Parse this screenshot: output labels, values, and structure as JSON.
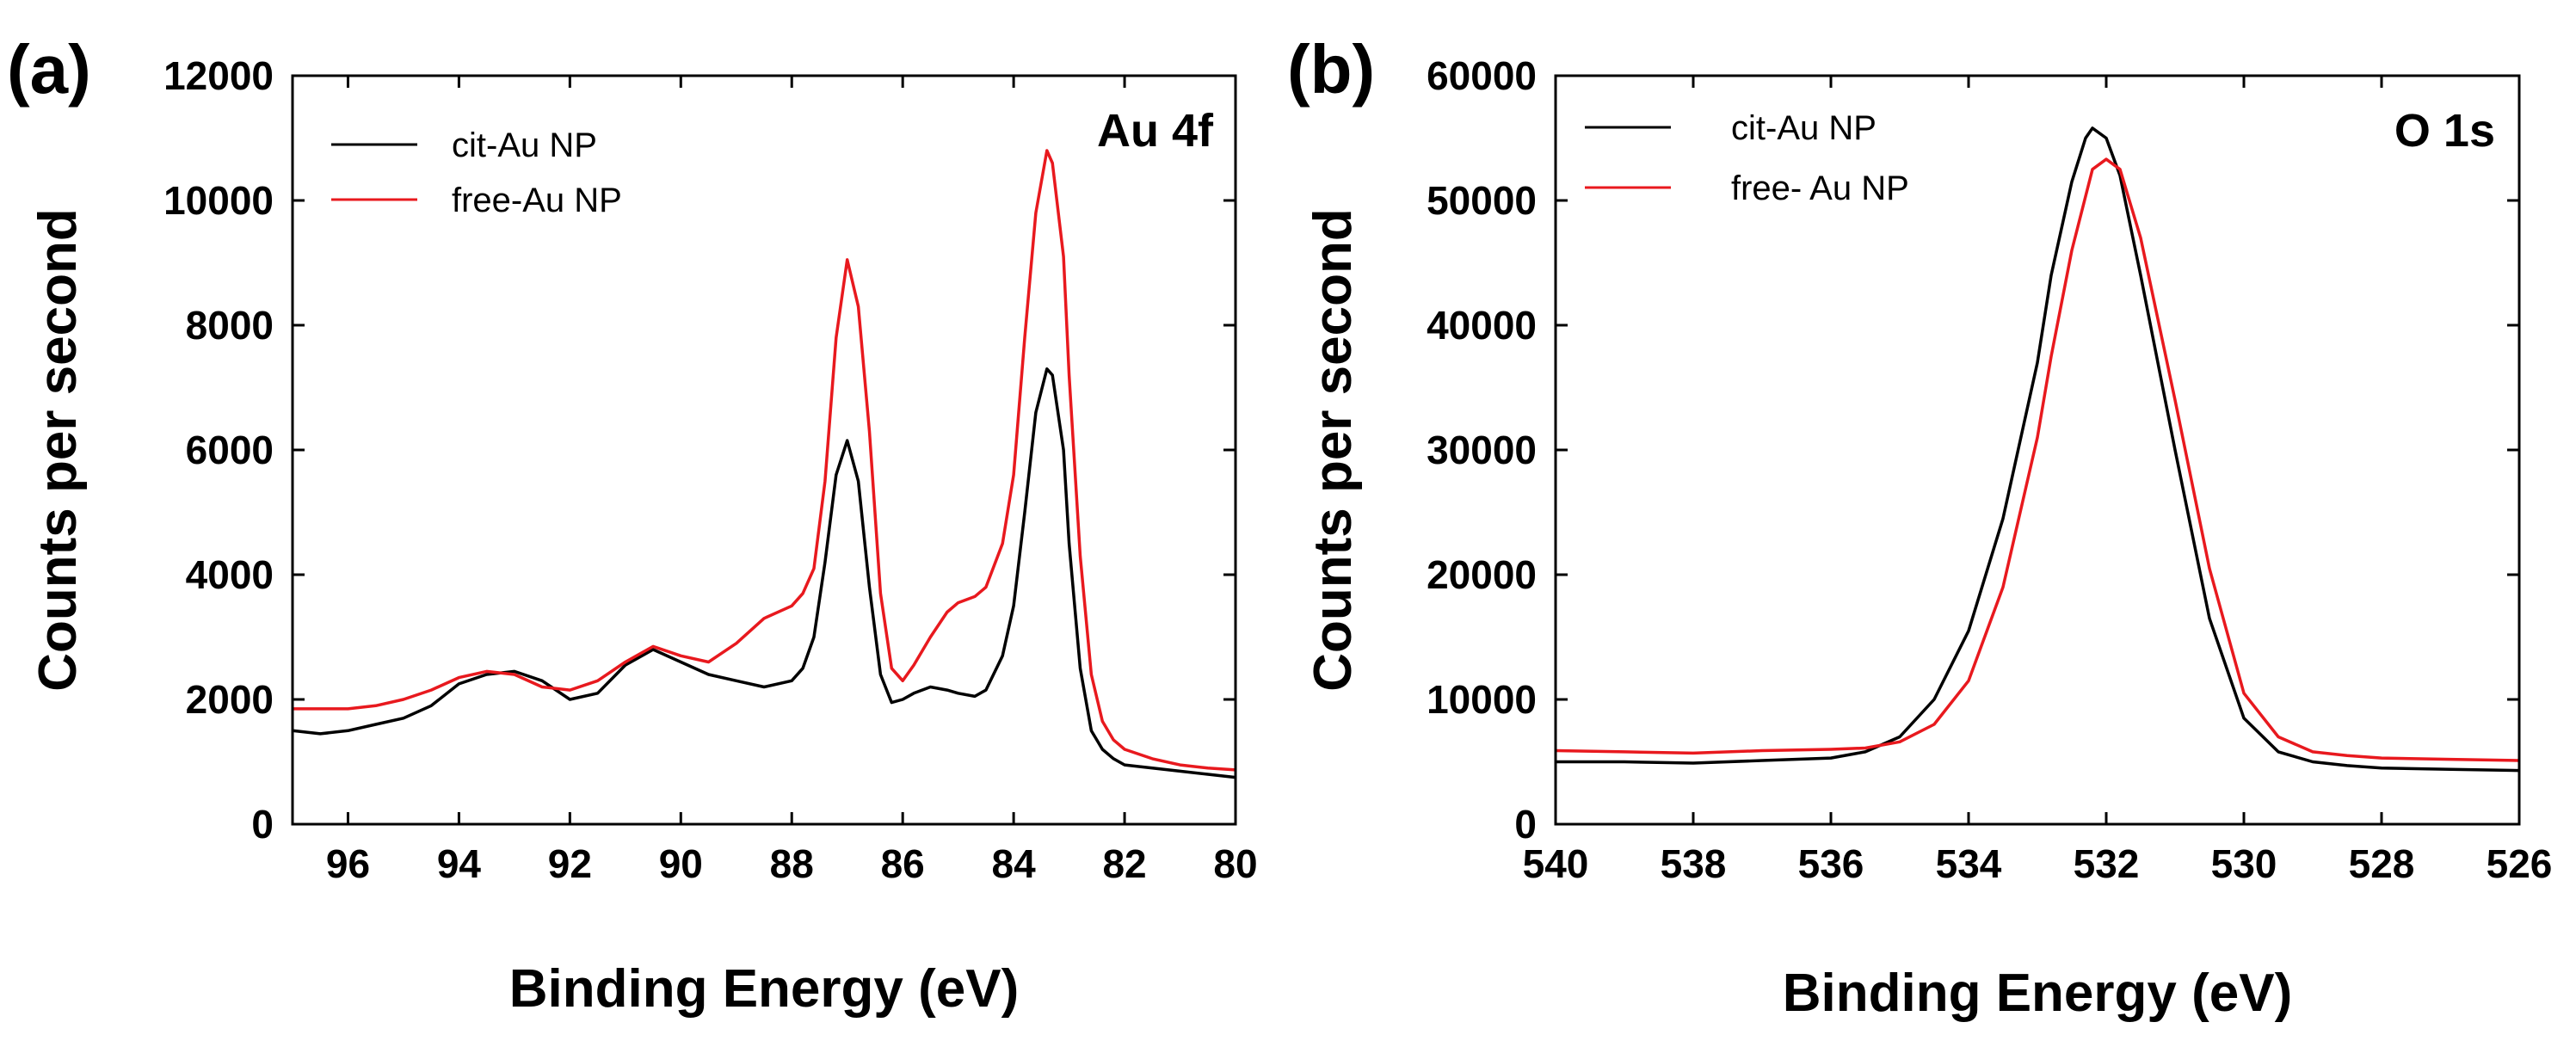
{
  "chart_data": [
    {
      "panel_label": "(a)",
      "type": "line",
      "title": "",
      "annotation": "Au 4f",
      "xlabel": "Binding Energy (eV)",
      "ylabel": "Counts per second",
      "xlim": [
        97,
        80
      ],
      "ylim": [
        0,
        12000
      ],
      "xticks": [
        96,
        94,
        92,
        90,
        88,
        86,
        84,
        82,
        80
      ],
      "yticks": [
        0,
        2000,
        4000,
        6000,
        8000,
        10000,
        12000
      ],
      "legend_position": "top-left",
      "series": [
        {
          "name": "cit-Au NP",
          "color": "#000000",
          "x": [
            97,
            96.5,
            96,
            95.5,
            95,
            94.5,
            94,
            93.5,
            93,
            92.5,
            92,
            91.5,
            91,
            90.5,
            90,
            89.5,
            89,
            88.5,
            88,
            87.8,
            87.6,
            87.4,
            87.2,
            87,
            86.8,
            86.6,
            86.4,
            86.2,
            86,
            85.8,
            85.5,
            85.2,
            85,
            84.7,
            84.5,
            84.2,
            84,
            83.8,
            83.6,
            83.4,
            83.3,
            83.1,
            83,
            82.8,
            82.6,
            82.4,
            82.2,
            82,
            81.5,
            81,
            80.5,
            80
          ],
          "values": [
            1500,
            1450,
            1500,
            1600,
            1700,
            1900,
            2250,
            2400,
            2450,
            2300,
            2000,
            2100,
            2550,
            2800,
            2600,
            2400,
            2300,
            2200,
            2300,
            2500,
            3000,
            4200,
            5600,
            6150,
            5500,
            3800,
            2400,
            1950,
            2000,
            2100,
            2200,
            2150,
            2100,
            2050,
            2150,
            2700,
            3500,
            5000,
            6600,
            7300,
            7200,
            6000,
            4500,
            2500,
            1500,
            1200,
            1050,
            950,
            900,
            850,
            800,
            750
          ]
        },
        {
          "name": "free-Au NP",
          "color": "#e8191e",
          "x": [
            97,
            96.5,
            96,
            95.5,
            95,
            94.5,
            94,
            93.5,
            93,
            92.5,
            92,
            91.5,
            91,
            90.5,
            90,
            89.5,
            89,
            88.5,
            88,
            87.8,
            87.6,
            87.4,
            87.2,
            87,
            86.8,
            86.6,
            86.4,
            86.2,
            86,
            85.8,
            85.5,
            85.2,
            85,
            84.7,
            84.5,
            84.2,
            84,
            83.8,
            83.6,
            83.4,
            83.3,
            83.1,
            83,
            82.8,
            82.6,
            82.4,
            82.2,
            82,
            81.5,
            81,
            80.5,
            80
          ],
          "values": [
            1850,
            1850,
            1850,
            1900,
            2000,
            2150,
            2350,
            2450,
            2400,
            2200,
            2150,
            2300,
            2600,
            2850,
            2700,
            2600,
            2900,
            3300,
            3500,
            3700,
            4100,
            5500,
            7800,
            9050,
            8300,
            6300,
            3700,
            2500,
            2300,
            2550,
            3000,
            3400,
            3550,
            3650,
            3800,
            4500,
            5600,
            7800,
            9800,
            10800,
            10600,
            9100,
            7200,
            4300,
            2400,
            1650,
            1350,
            1200,
            1050,
            950,
            900,
            870
          ]
        }
      ]
    },
    {
      "panel_label": "(b)",
      "type": "line",
      "title": "",
      "annotation": "O 1s",
      "xlabel": "Binding Energy (eV)",
      "ylabel": "Counts per second",
      "xlim": [
        540,
        526
      ],
      "ylim": [
        0,
        60000
      ],
      "xticks": [
        540,
        538,
        536,
        534,
        532,
        530,
        528,
        526
      ],
      "yticks": [
        0,
        10000,
        20000,
        30000,
        40000,
        50000,
        60000
      ],
      "legend_position": "top-left",
      "series": [
        {
          "name": "cit-Au NP",
          "color": "#000000",
          "x": [
            540,
            539,
            538,
            537,
            536,
            535.5,
            535,
            534.5,
            534,
            533.5,
            533,
            532.8,
            532.5,
            532.3,
            532.2,
            532,
            531.8,
            531.5,
            531,
            530.5,
            530,
            529.5,
            529,
            528.5,
            528,
            527,
            526
          ],
          "values": [
            5000,
            5000,
            4900,
            5100,
            5300,
            5800,
            7000,
            10000,
            15500,
            24500,
            37000,
            44000,
            51500,
            55000,
            55800,
            55000,
            52000,
            44000,
            30000,
            16500,
            8500,
            5800,
            5000,
            4700,
            4500,
            4400,
            4300
          ]
        },
        {
          "name": "free- Au NP",
          "color": "#e8191e",
          "x": [
            540,
            539,
            538,
            537,
            536,
            535.5,
            535,
            534.5,
            534,
            533.5,
            533,
            532.8,
            532.5,
            532.2,
            532,
            531.8,
            531.5,
            531,
            530.5,
            530,
            529.5,
            529,
            528.5,
            528,
            527,
            526
          ],
          "values": [
            5900,
            5800,
            5700,
            5900,
            6000,
            6100,
            6600,
            8000,
            11500,
            19000,
            31000,
            37500,
            46000,
            52500,
            53300,
            52500,
            47000,
            34000,
            20500,
            10500,
            7000,
            5800,
            5500,
            5300,
            5200,
            5100
          ]
        }
      ]
    }
  ]
}
